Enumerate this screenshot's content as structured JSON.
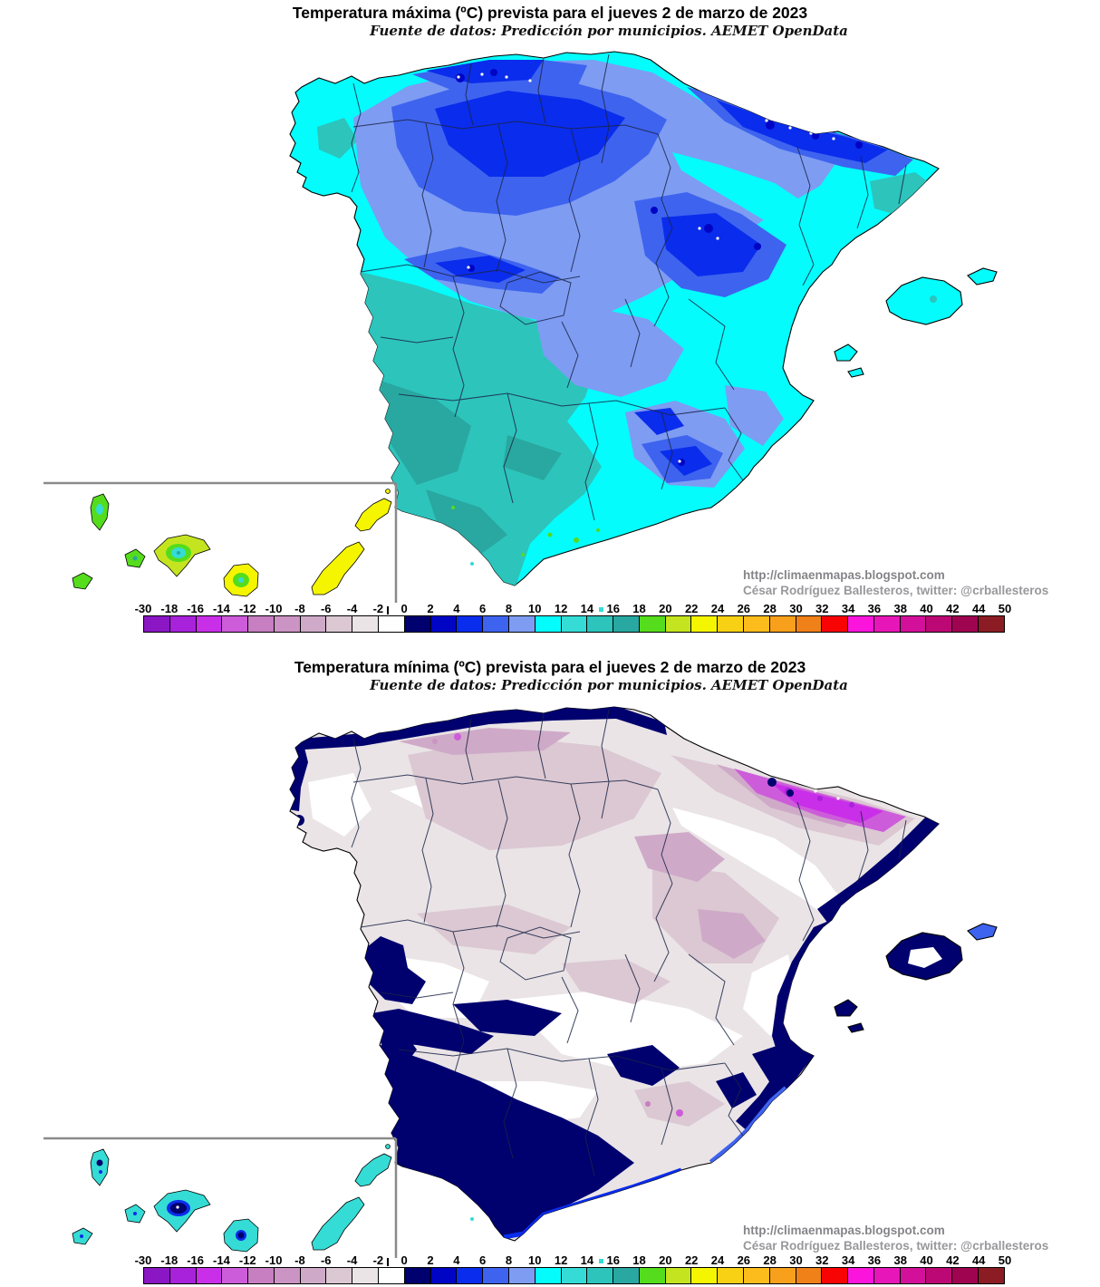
{
  "colors": {
    "background": "#ffffff",
    "coastline": "#000000",
    "province_border": "#1a2446",
    "inset_border": "#8a8a8a",
    "attribution_line1": "#858589",
    "attribution_line2": "#98989c",
    "title": "#000000"
  },
  "scale": {
    "unit": "ºC",
    "labels": [
      "-30",
      "-18",
      "-16",
      "-14",
      "-12",
      "-10",
      "-8",
      "-6",
      "-4",
      "-2",
      "0",
      "2",
      "4",
      "6",
      "8",
      "10",
      "12",
      "14",
      "16",
      "18",
      "20",
      "22",
      "24",
      "26",
      "28",
      "30",
      "32",
      "34",
      "36",
      "38",
      "40",
      "42",
      "44",
      "50"
    ],
    "segment_colors": [
      "#8A16C4",
      "#A722DA",
      "#C92FE8",
      "#CD5CDA",
      "#C77FC1",
      "#CB94C4",
      "#CFAAC8",
      "#DBC8D2",
      "#EAE4E6",
      "#FFFFFF",
      "#00006E",
      "#0005C5",
      "#0A2CEC",
      "#3E63EF",
      "#7E9CF2",
      "#04FCFC",
      "#35DCD5",
      "#2DC4BC",
      "#28A8A0",
      "#55DC1C",
      "#C5E420",
      "#F5F500",
      "#F8D014",
      "#FCBC1C",
      "#F8A01C",
      "#F08018",
      "#F80404",
      "#FA14DC",
      "#E616B8",
      "#D2109A",
      "#BC0874",
      "#9E0450",
      "#8C1C24"
    ],
    "marker_dot_color": "#35DCD5",
    "marker_dot_between": [
      "14",
      "16"
    ],
    "tick_near_label": "0"
  },
  "maps": [
    {
      "id": "maxima",
      "title": "Temperatura máxima (ºC) prevista para el jueves 2 de marzo de 2023",
      "subtitle": "Fuente de datos: Predicción por municipios. AEMET OpenData",
      "attribution_line1": "http://climaenmapas.blogspot.com",
      "attribution_line2": "César Rodríguez Ballesteros, twitter: @crballesteros"
    },
    {
      "id": "minima",
      "title": "Temperatura mínima (ºC) prevista para el jueves 2 de marzo de 2023",
      "subtitle": "Fuente de datos: Predicción por municipios. AEMET OpenData",
      "attribution_line1": "http://climaenmapas.blogspot.com",
      "attribution_line2": "César Rodríguez Ballesteros, twitter: @crballesteros"
    }
  ]
}
